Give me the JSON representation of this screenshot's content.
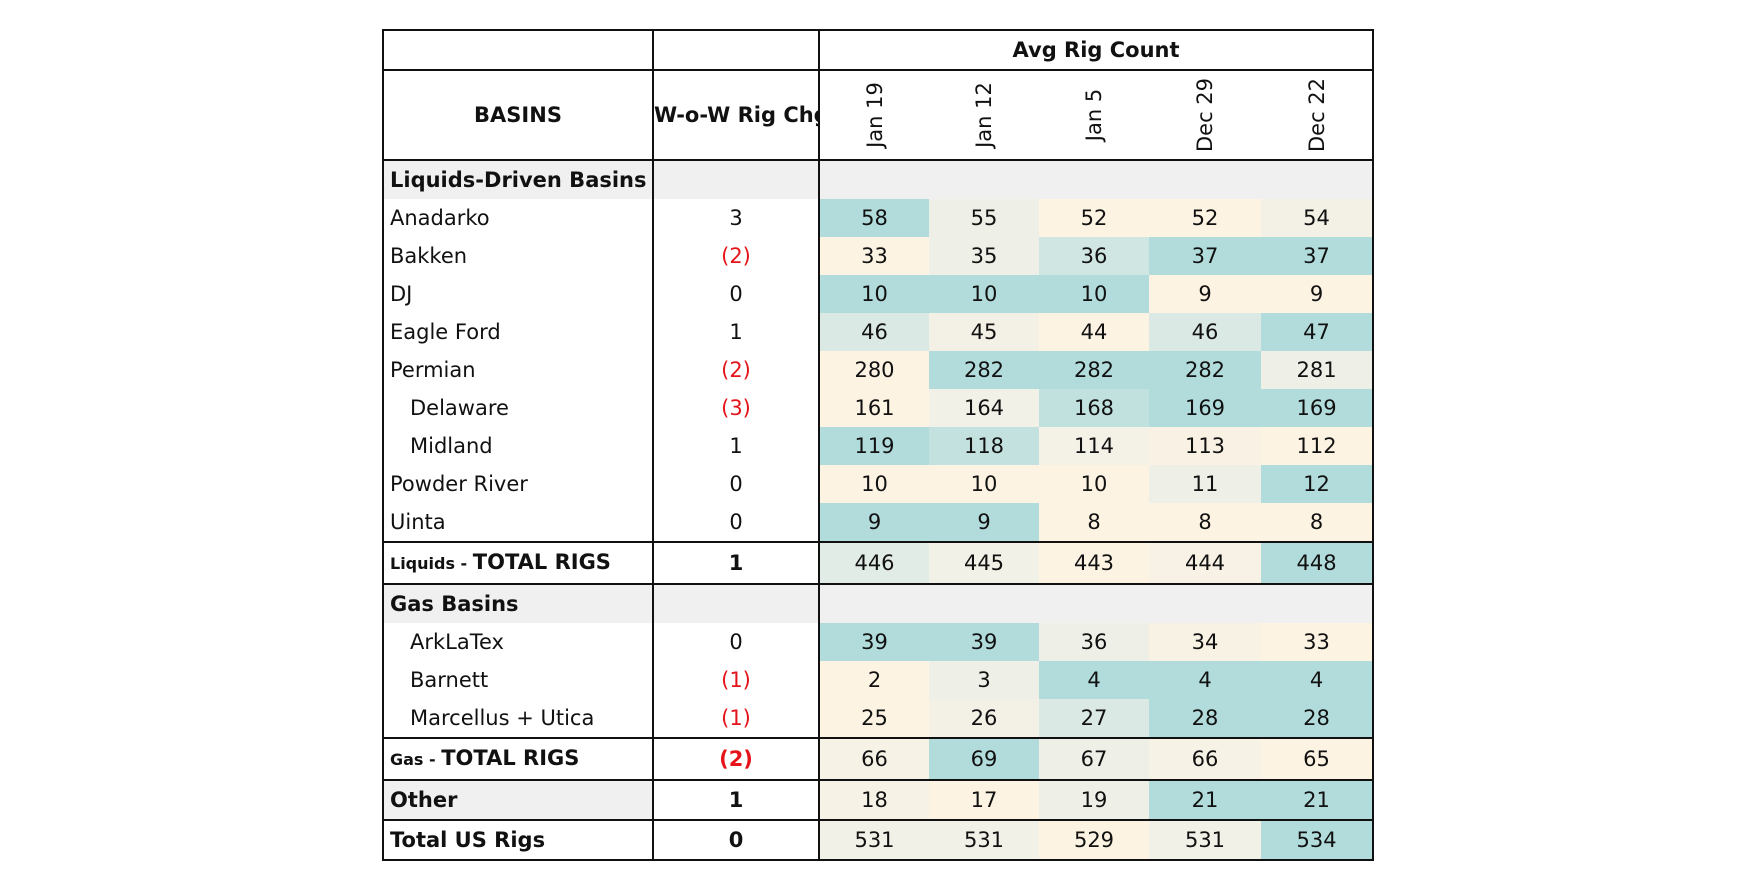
{
  "chart_data": {
    "type": "table",
    "header": {
      "basins_label": "BASINS",
      "chg_label": "W-o-W Rig Chg",
      "group_label": "Avg Rig Count",
      "dates": [
        "Jan 19",
        "Jan 12",
        "Jan 5",
        "Dec 29",
        "Dec 22"
      ]
    },
    "rows": [
      {
        "kind": "section",
        "name": "Liquids-Driven Basins"
      },
      {
        "kind": "data",
        "name": "Anadarko",
        "indent": false,
        "chg": "3",
        "neg": false,
        "values": [
          58,
          55,
          52,
          52,
          54
        ]
      },
      {
        "kind": "data",
        "name": "Bakken",
        "indent": false,
        "chg": "(2)",
        "neg": true,
        "values": [
          33,
          35,
          36,
          37,
          37
        ]
      },
      {
        "kind": "data",
        "name": "DJ",
        "indent": false,
        "chg": "0",
        "neg": false,
        "values": [
          10,
          10,
          10,
          9,
          9
        ]
      },
      {
        "kind": "data",
        "name": "Eagle Ford",
        "indent": false,
        "chg": "1",
        "neg": false,
        "values": [
          46,
          45,
          44,
          46,
          47
        ]
      },
      {
        "kind": "data",
        "name": "Permian",
        "indent": false,
        "chg": "(2)",
        "neg": true,
        "values": [
          280,
          282,
          282,
          282,
          281
        ]
      },
      {
        "kind": "data",
        "name": "Delaware",
        "indent": true,
        "chg": "(3)",
        "neg": true,
        "values": [
          161,
          164,
          168,
          169,
          169
        ]
      },
      {
        "kind": "data",
        "name": "Midland",
        "indent": true,
        "chg": "1",
        "neg": false,
        "values": [
          119,
          118,
          114,
          113,
          112
        ]
      },
      {
        "kind": "data",
        "name": "Powder River",
        "indent": false,
        "chg": "0",
        "neg": false,
        "values": [
          10,
          10,
          10,
          11,
          12
        ]
      },
      {
        "kind": "data",
        "name": "Uinta",
        "indent": false,
        "chg": "0",
        "neg": false,
        "values": [
          9,
          9,
          8,
          8,
          8
        ]
      },
      {
        "kind": "total",
        "prefix": "Liquids - ",
        "name": "TOTAL RIGS",
        "chg": "1",
        "neg": false,
        "values": [
          446,
          445,
          443,
          444,
          448
        ]
      },
      {
        "kind": "section",
        "name": "Gas Basins"
      },
      {
        "kind": "data",
        "name": "ArkLaTex",
        "indent": true,
        "chg": "0",
        "neg": false,
        "values": [
          39,
          39,
          36,
          34,
          33
        ]
      },
      {
        "kind": "data",
        "name": "Barnett",
        "indent": true,
        "chg": "(1)",
        "neg": true,
        "values": [
          2,
          3,
          4,
          4,
          4
        ]
      },
      {
        "kind": "data",
        "name": "Marcellus + Utica",
        "indent": true,
        "chg": "(1)",
        "neg": true,
        "values": [
          25,
          26,
          27,
          28,
          28
        ]
      },
      {
        "kind": "total",
        "prefix": "Gas - ",
        "name": "TOTAL RIGS",
        "chg": "(2)",
        "neg": true,
        "values": [
          66,
          69,
          67,
          66,
          65
        ]
      },
      {
        "kind": "other",
        "name": "Other",
        "chg": "1",
        "neg": false,
        "values": [
          18,
          17,
          19,
          21,
          21
        ]
      },
      {
        "kind": "grand",
        "name": "Total US Rigs",
        "chg": "0",
        "neg": false,
        "values": [
          531,
          531,
          529,
          531,
          534
        ]
      }
    ],
    "colors": {
      "high": "#b2dcdc",
      "mid": "#eef0e8",
      "low": "#fdf3e3",
      "negative_text": "#e5141b",
      "section_bg": "#f0f0f0"
    }
  }
}
